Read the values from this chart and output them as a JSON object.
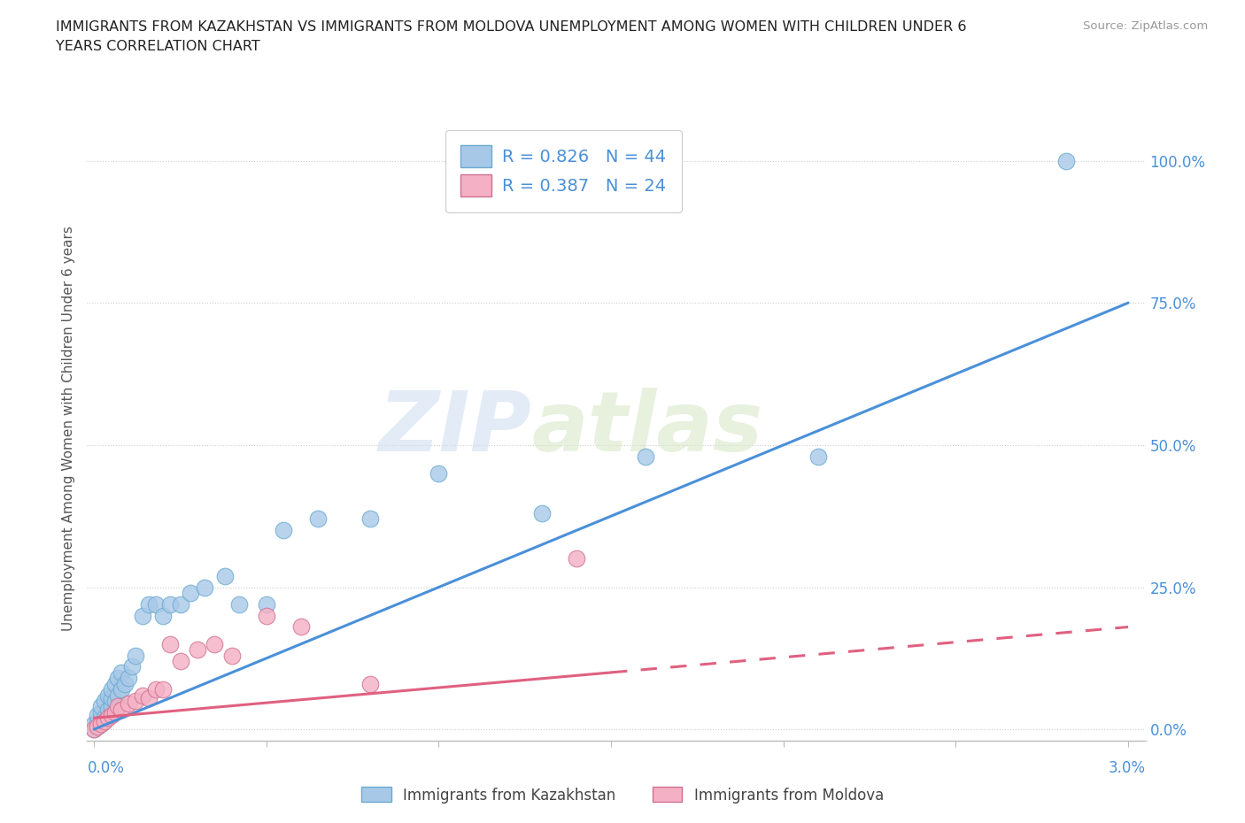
{
  "title": "IMMIGRANTS FROM KAZAKHSTAN VS IMMIGRANTS FROM MOLDOVA UNEMPLOYMENT AMONG WOMEN WITH CHILDREN UNDER 6\nYEARS CORRELATION CHART",
  "source": "Source: ZipAtlas.com",
  "ylabel": "Unemployment Among Women with Children Under 6 years",
  "xlim": [
    0.0,
    3.0
  ],
  "ylim": [
    0.0,
    105.0
  ],
  "yticks": [
    0.0,
    25.0,
    50.0,
    75.0,
    100.0
  ],
  "ytick_labels": [
    "0.0%",
    "25.0%",
    "50.0%",
    "75.0%",
    "100.0%"
  ],
  "kaz_color": "#a8c8e8",
  "mol_color": "#f4b0c4",
  "kaz_line_color": "#4a90d9",
  "mol_line_color": "#e06080",
  "watermark_zip": "ZIP",
  "watermark_atlas": "atlas",
  "kaz_line_x0": 0.0,
  "kaz_line_y0": 0.0,
  "kaz_line_x1": 3.0,
  "kaz_line_y1": 75.0,
  "mol_line_x0": 0.0,
  "mol_line_y0": 2.0,
  "mol_line_x1": 3.0,
  "mol_line_y1": 18.0,
  "mol_solid_end": 1.5,
  "kaz_x": [
    0.0,
    0.0,
    0.01,
    0.01,
    0.01,
    0.02,
    0.02,
    0.02,
    0.03,
    0.03,
    0.04,
    0.04,
    0.05,
    0.05,
    0.05,
    0.06,
    0.06,
    0.07,
    0.07,
    0.08,
    0.08,
    0.09,
    0.1,
    0.11,
    0.12,
    0.14,
    0.16,
    0.18,
    0.2,
    0.22,
    0.25,
    0.28,
    0.32,
    0.38,
    0.42,
    0.5,
    0.55,
    0.65,
    0.8,
    1.0,
    1.3,
    1.6,
    2.1,
    2.82
  ],
  "kaz_y": [
    0.0,
    1.0,
    0.5,
    1.5,
    2.5,
    1.0,
    3.0,
    4.0,
    2.0,
    5.0,
    3.5,
    6.0,
    4.0,
    5.5,
    7.0,
    5.0,
    8.0,
    6.0,
    9.0,
    7.0,
    10.0,
    8.0,
    9.0,
    11.0,
    13.0,
    20.0,
    22.0,
    22.0,
    20.0,
    22.0,
    22.0,
    24.0,
    25.0,
    27.0,
    22.0,
    22.0,
    35.0,
    37.0,
    37.0,
    45.0,
    38.0,
    48.0,
    48.0,
    100.0
  ],
  "mol_x": [
    0.0,
    0.01,
    0.02,
    0.03,
    0.04,
    0.05,
    0.06,
    0.07,
    0.08,
    0.1,
    0.12,
    0.14,
    0.16,
    0.18,
    0.2,
    0.22,
    0.25,
    0.3,
    0.35,
    0.4,
    0.5,
    0.6,
    0.8,
    1.4
  ],
  "mol_y": [
    0.0,
    0.5,
    1.0,
    1.5,
    2.0,
    2.5,
    3.0,
    4.0,
    3.5,
    4.5,
    5.0,
    6.0,
    5.5,
    7.0,
    7.0,
    15.0,
    12.0,
    14.0,
    15.0,
    13.0,
    20.0,
    18.0,
    8.0,
    30.0
  ]
}
